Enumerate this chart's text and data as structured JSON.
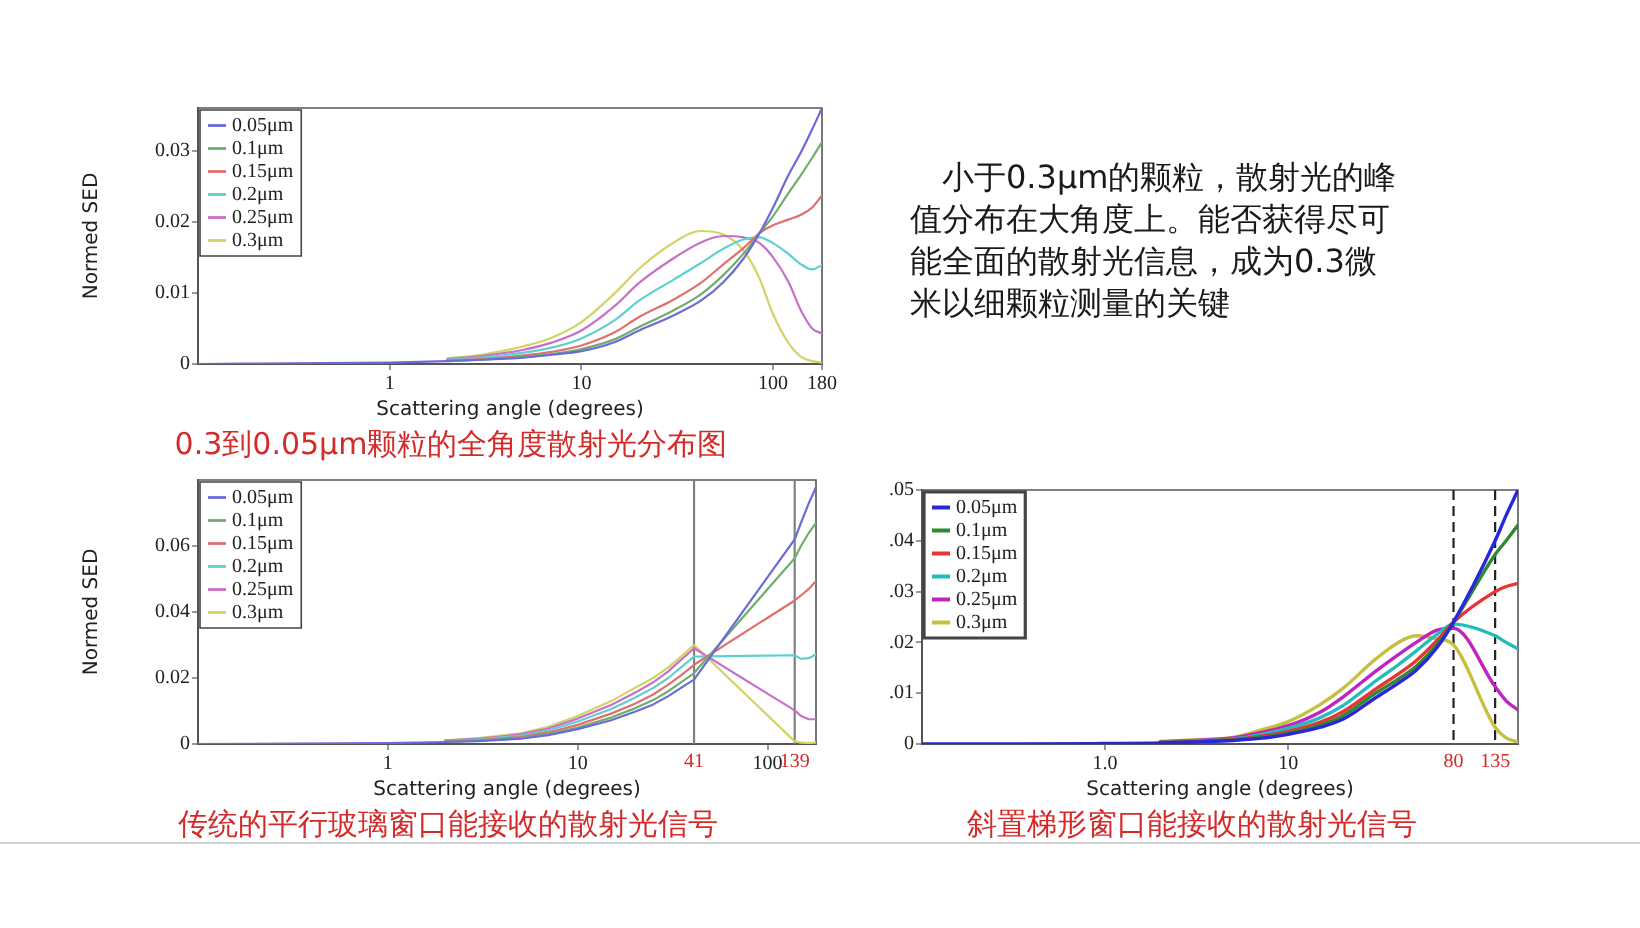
{
  "chart_data": [
    {
      "type": "line",
      "title": "0.3到0.05μm颗粒的全角度散射光分布图",
      "xlabel": "Scattering angle (degrees)",
      "ylabel": "Normed SED",
      "log": "x",
      "legend": "top left",
      "xlim": [
        0.1,
        180
      ],
      "xticks": [
        1,
        10,
        100,
        180
      ],
      "ylim": [
        0,
        0.036
      ],
      "yticks": [
        0,
        0.01,
        0.02,
        0.03
      ],
      "x": [
        0.1,
        0.3,
        1,
        2,
        3,
        5,
        7,
        10,
        15,
        20,
        30,
        42,
        55,
        70,
        85,
        100,
        120,
        140,
        160,
        180
      ],
      "series": [
        {
          "name": "0.05μm",
          "color": "#6b6bd6",
          "values": [
            0,
            0.0001,
            0.0002,
            0.0004,
            0.0006,
            0.0009,
            0.0013,
            0.0018,
            0.0031,
            0.0047,
            0.0068,
            0.0089,
            0.0115,
            0.0148,
            0.0184,
            0.022,
            0.0265,
            0.0298,
            0.033,
            0.036
          ]
        },
        {
          "name": "0.1μm",
          "color": "#6fae6f",
          "x": [
            2,
            3,
            5,
            7,
            10,
            15,
            20,
            30,
            42,
            55,
            70,
            85,
            100,
            120,
            140,
            160,
            180
          ],
          "values": [
            0.0004,
            0.0006,
            0.001,
            0.0014,
            0.0021,
            0.0035,
            0.0052,
            0.0075,
            0.0098,
            0.0125,
            0.0155,
            0.0184,
            0.0208,
            0.024,
            0.0266,
            0.029,
            0.0312
          ]
        },
        {
          "name": "0.15μm",
          "color": "#e07070",
          "x": [
            2,
            3,
            5,
            7,
            10,
            15,
            20,
            30,
            42,
            55,
            70,
            85,
            100,
            120,
            140,
            160,
            180
          ],
          "values": [
            0.0005,
            0.0007,
            0.0012,
            0.0017,
            0.0026,
            0.0045,
            0.0066,
            0.009,
            0.0114,
            0.014,
            0.0163,
            0.0184,
            0.0195,
            0.0203,
            0.021,
            0.022,
            0.0237
          ]
        },
        {
          "name": "0.2μm",
          "color": "#5fd0d0",
          "x": [
            2,
            3,
            5,
            7,
            10,
            15,
            20,
            30,
            42,
            55,
            70,
            85,
            100,
            120,
            140,
            160,
            180
          ],
          "values": [
            0.0006,
            0.0009,
            0.0016,
            0.0023,
            0.0036,
            0.0062,
            0.0089,
            0.0118,
            0.0142,
            0.0162,
            0.0175,
            0.0178,
            0.017,
            0.0155,
            0.014,
            0.0133,
            0.0139
          ]
        },
        {
          "name": "0.25μm",
          "color": "#c870c8",
          "x": [
            2,
            3,
            5,
            7,
            10,
            15,
            20,
            30,
            42,
            55,
            70,
            85,
            100,
            120,
            140,
            160,
            180
          ],
          "values": [
            0.0007,
            0.0011,
            0.002,
            0.003,
            0.0047,
            0.0082,
            0.0114,
            0.0148,
            0.0171,
            0.018,
            0.0178,
            0.017,
            0.015,
            0.0116,
            0.0075,
            0.005,
            0.0043
          ]
        },
        {
          "name": "0.3μm",
          "color": "#d2d266",
          "x": [
            2,
            3,
            5,
            7,
            10,
            15,
            20,
            30,
            42,
            55,
            70,
            85,
            100,
            120,
            140,
            160,
            180
          ],
          "values": [
            0.0008,
            0.0013,
            0.0025,
            0.0037,
            0.0059,
            0.01,
            0.0134,
            0.017,
            0.0187,
            0.0182,
            0.016,
            0.012,
            0.007,
            0.003,
            0.001,
            0.0004,
            0.0002
          ]
        }
      ]
    },
    {
      "type": "other",
      "annotations": [
        "小于0.3μm的颗粒，散射光的峰值分布在大角度上。能否获得尽可能全面的散射光信息，成为0.3微米以细颗粒测量的关键"
      ]
    },
    {
      "type": "line",
      "title": "传统的平行玻璃窗口能接收的散射光信号",
      "xlabel": "Scattering angle (degrees)",
      "ylabel": "Normed SED",
      "log": "x",
      "legend": "top left",
      "xlim": [
        0.1,
        180
      ],
      "xticks": [
        1,
        10,
        100
      ],
      "ylim": [
        0,
        0.08
      ],
      "yticks": [
        0,
        0.02,
        0.04,
        0.06
      ],
      "ref_lines": [
        {
          "axis": "x",
          "value": 41,
          "label": "41",
          "color": "#808080"
        },
        {
          "axis": "x",
          "value": 139,
          "label": "139",
          "color": "#808080"
        }
      ],
      "x": [
        0.1,
        0.3,
        1,
        2,
        3,
        5,
        7,
        10,
        15,
        20,
        25,
        30,
        35,
        41,
        139,
        150,
        165,
        180
      ],
      "series": [
        {
          "name": "0.05μm",
          "color": "#6b6bd6",
          "values": [
            0,
            0.0001,
            0.0003,
            0.0006,
            0.0009,
            0.0016,
            0.0027,
            0.0045,
            0.0072,
            0.0098,
            0.012,
            0.0145,
            0.017,
            0.0195,
            0.062,
            0.067,
            0.073,
            0.0778
          ]
        },
        {
          "name": "0.1μm",
          "color": "#6fae6f",
          "x": [
            2,
            3,
            5,
            7,
            10,
            15,
            20,
            25,
            30,
            35,
            41,
            139,
            150,
            165,
            180
          ],
          "values": [
            0.0007,
            0.001,
            0.0018,
            0.003,
            0.005,
            0.008,
            0.0108,
            0.0133,
            0.016,
            0.0187,
            0.0215,
            0.0563,
            0.06,
            0.064,
            0.067
          ]
        },
        {
          "name": "0.15μm",
          "color": "#e07070",
          "x": [
            2,
            3,
            5,
            7,
            10,
            15,
            20,
            25,
            30,
            35,
            41,
            139,
            150,
            165,
            180
          ],
          "values": [
            0.0008,
            0.0012,
            0.0021,
            0.0035,
            0.0058,
            0.0092,
            0.0122,
            0.015,
            0.018,
            0.0208,
            0.024,
            0.0435,
            0.045,
            0.047,
            0.0494
          ]
        },
        {
          "name": "0.2μm",
          "color": "#5fd0d0",
          "x": [
            2,
            3,
            5,
            7,
            10,
            15,
            20,
            25,
            30,
            35,
            41,
            139,
            150,
            165,
            180
          ],
          "values": [
            0.0009,
            0.0014,
            0.0025,
            0.0041,
            0.0068,
            0.0106,
            0.014,
            0.017,
            0.02,
            0.0232,
            0.0265,
            0.0269,
            0.0258,
            0.026,
            0.0272
          ]
        },
        {
          "name": "0.25μm",
          "color": "#c870c8",
          "x": [
            2,
            3,
            5,
            7,
            10,
            15,
            20,
            25,
            30,
            35,
            41,
            139,
            150,
            165,
            180
          ],
          "values": [
            0.001,
            0.0016,
            0.0029,
            0.0047,
            0.0077,
            0.0118,
            0.0155,
            0.0187,
            0.022,
            0.0255,
            0.029,
            0.0102,
            0.0085,
            0.0075,
            0.0075
          ]
        },
        {
          "name": "0.3μm",
          "color": "#d2d266",
          "x": [
            2,
            3,
            5,
            7,
            10,
            15,
            20,
            25,
            30,
            35,
            41,
            139,
            150,
            165,
            180
          ],
          "values": [
            0.0011,
            0.0018,
            0.0032,
            0.0052,
            0.0085,
            0.013,
            0.017,
            0.02,
            0.0232,
            0.0265,
            0.03,
            0.0008,
            0.0004,
            0.0003,
            0.0004
          ]
        }
      ]
    },
    {
      "type": "line",
      "title": "斜置梯形窗口能接收的散射光信号",
      "xlabel": "Scattering angle (degrees)",
      "log": "x",
      "legend": "top left",
      "xlim": [
        0.1,
        180
      ],
      "xticks": [
        {
          "value": 1,
          "label": "1.0"
        },
        10
      ],
      "ylim": [
        0,
        0.05
      ],
      "yticks": [
        {
          "value": 0,
          "label": "0"
        },
        {
          "value": 0.01,
          "label": ".01"
        },
        {
          "value": 0.02,
          "label": ".02"
        },
        {
          "value": 0.03,
          "label": ".03"
        },
        {
          "value": 0.04,
          "label": ".04"
        },
        {
          "value": 0.05,
          "label": ".05"
        }
      ],
      "ref_lines": [
        {
          "axis": "x",
          "value": 80,
          "label": "80",
          "color": "#222222",
          "line_style": "dashed"
        },
        {
          "axis": "x",
          "value": 135,
          "label": "135",
          "color": "#222222",
          "line_style": "dashed"
        }
      ],
      "x": [
        0.1,
        0.3,
        1,
        2,
        3,
        5,
        7,
        10,
        15,
        20,
        30,
        40,
        50,
        65,
        80,
        135,
        155,
        180
      ],
      "series": [
        {
          "name": "0.05μm",
          "color": "#2828d8",
          "values": [
            0,
            0,
            0.0001,
            0.0002,
            0.0004,
            0.0007,
            0.0011,
            0.0019,
            0.0033,
            0.0049,
            0.0091,
            0.012,
            0.0145,
            0.019,
            0.024,
            0.04,
            0.045,
            0.05
          ]
        },
        {
          "name": "0.1μm",
          "color": "#2e8a2e",
          "x": [
            2,
            3,
            5,
            7,
            10,
            15,
            20,
            30,
            40,
            50,
            65,
            80,
            135,
            155,
            180
          ],
          "values": [
            0.0003,
            0.0004,
            0.0008,
            0.0013,
            0.0021,
            0.0037,
            0.0056,
            0.01,
            0.0128,
            0.0153,
            0.0196,
            0.024,
            0.0373,
            0.04,
            0.0431
          ]
        },
        {
          "name": "0.15μm",
          "color": "#e83434",
          "x": [
            2,
            3,
            5,
            7,
            10,
            15,
            20,
            30,
            40,
            50,
            65,
            80,
            135,
            155,
            180
          ],
          "values": [
            0.0003,
            0.0005,
            0.0009,
            0.0015,
            0.0025,
            0.0043,
            0.0064,
            0.0108,
            0.0138,
            0.0164,
            0.0204,
            0.024,
            0.03,
            0.031,
            0.0316
          ]
        },
        {
          "name": "0.2μm",
          "color": "#22bcbc",
          "x": [
            2,
            3,
            5,
            7,
            10,
            15,
            20,
            30,
            40,
            50,
            65,
            80,
            135,
            155,
            180
          ],
          "values": [
            0.0003,
            0.0006,
            0.001,
            0.0018,
            0.0031,
            0.0052,
            0.0076,
            0.0124,
            0.0156,
            0.0183,
            0.0216,
            0.0236,
            0.0213,
            0.02,
            0.0187
          ]
        },
        {
          "name": "0.25μm",
          "color": "#c024c0",
          "x": [
            2,
            3,
            5,
            7,
            10,
            15,
            20,
            30,
            40,
            50,
            65,
            80,
            135,
            155,
            180
          ],
          "values": [
            0.0004,
            0.0007,
            0.0012,
            0.0022,
            0.0036,
            0.0063,
            0.0093,
            0.0143,
            0.0176,
            0.02,
            0.0224,
            0.0228,
            0.0113,
            0.0085,
            0.0067
          ]
        },
        {
          "name": "0.3μm",
          "color": "#c6c040",
          "x": [
            2,
            3,
            5,
            7,
            10,
            15,
            20,
            30,
            40,
            50,
            65,
            80,
            135,
            155,
            180
          ],
          "values": [
            0.0005,
            0.0008,
            0.0013,
            0.0027,
            0.0044,
            0.0078,
            0.011,
            0.0167,
            0.02,
            0.0213,
            0.0207,
            0.0195,
            0.0033,
            0.0012,
            0.0004
          ]
        }
      ]
    }
  ]
}
